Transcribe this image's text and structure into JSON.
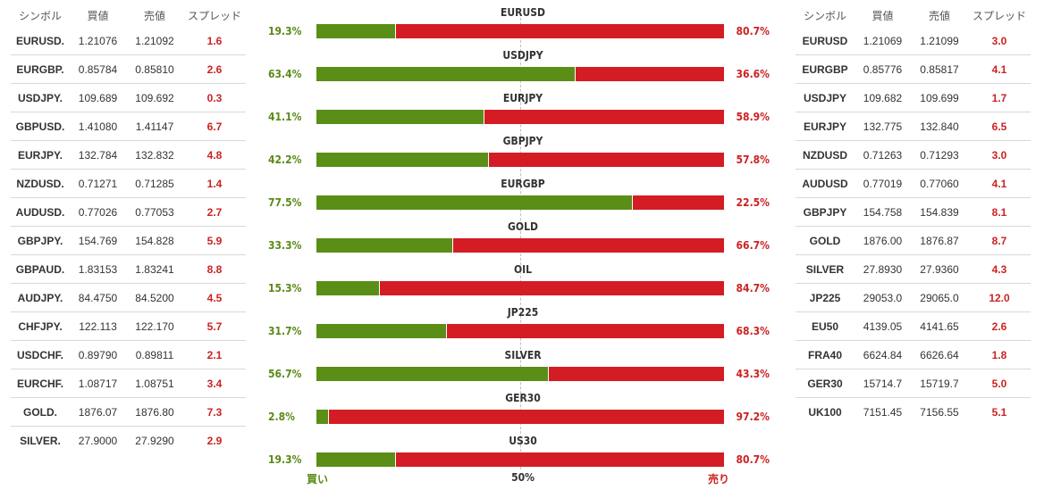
{
  "headers": {
    "symbol": "シンボル",
    "bid": "買値",
    "ask": "売値",
    "spread": "スプレッド"
  },
  "left_table": [
    {
      "symbol": "EURUSD.",
      "bid": "1.21076",
      "ask": "1.21092",
      "spread": "1.6"
    },
    {
      "symbol": "EURGBP.",
      "bid": "0.85784",
      "ask": "0.85810",
      "spread": "2.6"
    },
    {
      "symbol": "USDJPY.",
      "bid": "109.689",
      "ask": "109.692",
      "spread": "0.3"
    },
    {
      "symbol": "GBPUSD.",
      "bid": "1.41080",
      "ask": "1.41147",
      "spread": "6.7"
    },
    {
      "symbol": "EURJPY.",
      "bid": "132.784",
      "ask": "132.832",
      "spread": "4.8"
    },
    {
      "symbol": "NZDUSD.",
      "bid": "0.71271",
      "ask": "0.71285",
      "spread": "1.4"
    },
    {
      "symbol": "AUDUSD.",
      "bid": "0.77026",
      "ask": "0.77053",
      "spread": "2.7"
    },
    {
      "symbol": "GBPJPY.",
      "bid": "154.769",
      "ask": "154.828",
      "spread": "5.9"
    },
    {
      "symbol": "GBPAUD.",
      "bid": "1.83153",
      "ask": "1.83241",
      "spread": "8.8"
    },
    {
      "symbol": "AUDJPY.",
      "bid": "84.4750",
      "ask": "84.5200",
      "spread": "4.5"
    },
    {
      "symbol": "CHFJPY.",
      "bid": "122.113",
      "ask": "122.170",
      "spread": "5.7"
    },
    {
      "symbol": "USDCHF.",
      "bid": "0.89790",
      "ask": "0.89811",
      "spread": "2.1"
    },
    {
      "symbol": "EURCHF.",
      "bid": "1.08717",
      "ask": "1.08751",
      "spread": "3.4"
    },
    {
      "symbol": "GOLD.",
      "bid": "1876.07",
      "ask": "1876.80",
      "spread": "7.3"
    },
    {
      "symbol": "SILVER.",
      "bid": "27.9000",
      "ask": "27.9290",
      "spread": "2.9"
    }
  ],
  "right_table": [
    {
      "symbol": "EURUSD",
      "bid": "1.21069",
      "ask": "1.21099",
      "spread": "3.0"
    },
    {
      "symbol": "EURGBP",
      "bid": "0.85776",
      "ask": "0.85817",
      "spread": "4.1"
    },
    {
      "symbol": "USDJPY",
      "bid": "109.682",
      "ask": "109.699",
      "spread": "1.7"
    },
    {
      "symbol": "EURJPY",
      "bid": "132.775",
      "ask": "132.840",
      "spread": "6.5"
    },
    {
      "symbol": "NZDUSD",
      "bid": "0.71263",
      "ask": "0.71293",
      "spread": "3.0"
    },
    {
      "symbol": "AUDUSD",
      "bid": "0.77019",
      "ask": "0.77060",
      "spread": "4.1"
    },
    {
      "symbol": "GBPJPY",
      "bid": "154.758",
      "ask": "154.839",
      "spread": "8.1"
    },
    {
      "symbol": "GOLD",
      "bid": "1876.00",
      "ask": "1876.87",
      "spread": "8.7"
    },
    {
      "symbol": "SILVER",
      "bid": "27.8930",
      "ask": "27.9360",
      "spread": "4.3"
    },
    {
      "symbol": "JP225",
      "bid": "29053.0",
      "ask": "29065.0",
      "spread": "12.0"
    },
    {
      "symbol": "EU50",
      "bid": "4139.05",
      "ask": "4141.65",
      "spread": "2.6"
    },
    {
      "symbol": "FRA40",
      "bid": "6624.84",
      "ask": "6626.64",
      "spread": "1.8"
    },
    {
      "symbol": "GER30",
      "bid": "15714.7",
      "ask": "15719.7",
      "spread": "5.0"
    },
    {
      "symbol": "UK100",
      "bid": "7151.45",
      "ask": "7156.55",
      "spread": "5.1"
    }
  ],
  "sentiment": [
    {
      "name": "EURUSD",
      "buy": "19.3%",
      "sell": "80.7%"
    },
    {
      "name": "USDJPY",
      "buy": "63.4%",
      "sell": "36.6%"
    },
    {
      "name": "EURJPY",
      "buy": "41.1%",
      "sell": "58.9%"
    },
    {
      "name": "GBPJPY",
      "buy": "42.2%",
      "sell": "57.8%"
    },
    {
      "name": "EURGBP",
      "buy": "77.5%",
      "sell": "22.5%"
    },
    {
      "name": "GOLD",
      "buy": "33.3%",
      "sell": "66.7%"
    },
    {
      "name": "OIL",
      "buy": "15.3%",
      "sell": "84.7%"
    },
    {
      "name": "JP225",
      "buy": "31.7%",
      "sell": "68.3%"
    },
    {
      "name": "SILVER",
      "buy": "56.7%",
      "sell": "43.3%"
    },
    {
      "name": "GER30",
      "buy": "2.8%",
      "sell": "97.2%"
    },
    {
      "name": "US30",
      "buy": "19.3%",
      "sell": "80.7%"
    }
  ],
  "footer": {
    "buy_label": "買い",
    "mid_label": "50%",
    "sell_label": "売り"
  },
  "colors": {
    "buy": "#5b8e16",
    "sell": "#d41c24",
    "spread": "#cc2222"
  }
}
